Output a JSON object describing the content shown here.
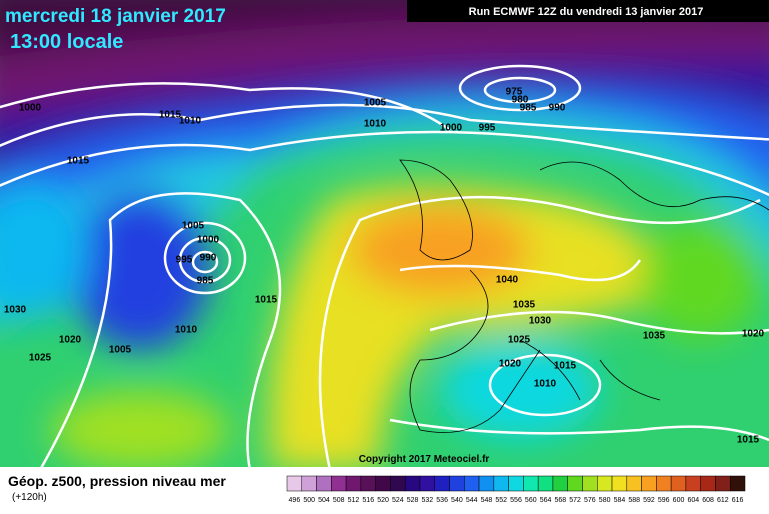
{
  "header": {
    "date": "mercredi 18 janvier 2017",
    "time": "13:00 locale",
    "run": "Run ECMWF 12Z du vendredi 13 janvier 2017"
  },
  "isobar_labels": [
    "1000",
    "1015",
    "1010",
    "1015",
    "1005",
    "1000",
    "995",
    "990",
    "985",
    "1030",
    "1015",
    "1010",
    "1020",
    "1005",
    "1025",
    "1005",
    "1010",
    "975",
    "980",
    "985",
    "990",
    "1000",
    "995",
    "1040",
    "1035",
    "1030",
    "1025",
    "1020",
    "1015",
    "1010",
    "1035",
    "1020",
    "1015"
  ],
  "copyright": "Copyright 2017 Meteociel.fr",
  "legend": {
    "title": "Géop. z500, pression niveau mer",
    "subtitle": "(+120h)",
    "values": [
      496,
      500,
      504,
      508,
      512,
      516,
      520,
      524,
      528,
      532,
      536,
      540,
      544,
      548,
      552,
      556,
      560,
      564,
      568,
      572,
      576,
      580,
      584,
      588,
      592,
      596,
      600,
      604,
      608,
      612,
      616
    ],
    "colors": [
      "#e8c8e8",
      "#d0a0d8",
      "#b070c0",
      "#903090",
      "#701870",
      "#581058",
      "#400848",
      "#300850",
      "#280880",
      "#3010a0",
      "#2020c0",
      "#2040e0",
      "#2060f0",
      "#1090f0",
      "#10b8f0",
      "#10d8e0",
      "#10e8b0",
      "#10e080",
      "#20d040",
      "#60d820",
      "#a0e020",
      "#d8e820",
      "#f0e020",
      "#f8c020",
      "#f8a020",
      "#f08020",
      "#e06020",
      "#c84020",
      "#a82818",
      "#802018",
      "#301008"
    ]
  }
}
